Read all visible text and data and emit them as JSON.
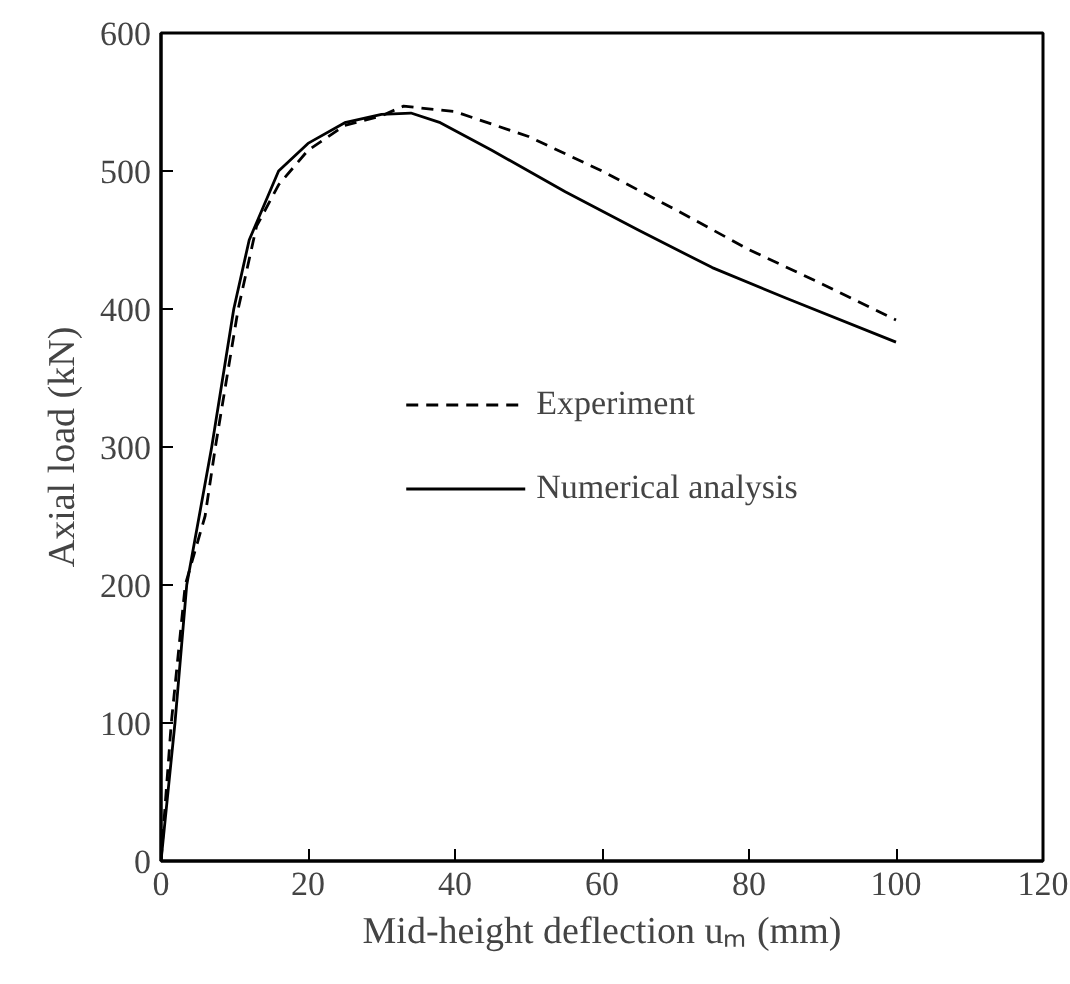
{
  "chart_data": {
    "type": "line",
    "xlabel": "Mid-height deflection uₘ (mm)",
    "ylabel": "Axial load (kN)",
    "xlim": [
      0,
      120
    ],
    "xticks": [
      0,
      20,
      40,
      60,
      80,
      100,
      120
    ],
    "ylim": [
      0,
      600
    ],
    "yticks": [
      0,
      100,
      200,
      300,
      400,
      500,
      600
    ],
    "legend": "center",
    "grid": false,
    "marker": "none",
    "series": [
      {
        "name": "Experiment",
        "color": "#000000",
        "line_style": "dashed",
        "x": [
          0,
          1.4,
          3.3,
          6,
          7.4,
          10.5,
          13,
          16,
          20,
          25,
          30,
          33,
          40,
          50,
          60,
          70,
          80,
          90,
          100
        ],
        "values": [
          0,
          100,
          200,
          250,
          300,
          400,
          460,
          490,
          515,
          533,
          540,
          547,
          543,
          525,
          500,
          472,
          443,
          418,
          392
        ]
      },
      {
        "name": "Numerical analysis",
        "color": "#000000",
        "line_style": "solid",
        "x": [
          0,
          1.9,
          3.5,
          6.9,
          9.9,
          12,
          16,
          20,
          25,
          30,
          34,
          38,
          45,
          55,
          65,
          75,
          85,
          100
        ],
        "values": [
          0,
          100,
          200,
          300,
          400,
          450,
          500,
          520,
          535,
          541,
          542,
          535,
          515,
          485,
          457,
          430,
          408,
          376
        ]
      }
    ]
  }
}
